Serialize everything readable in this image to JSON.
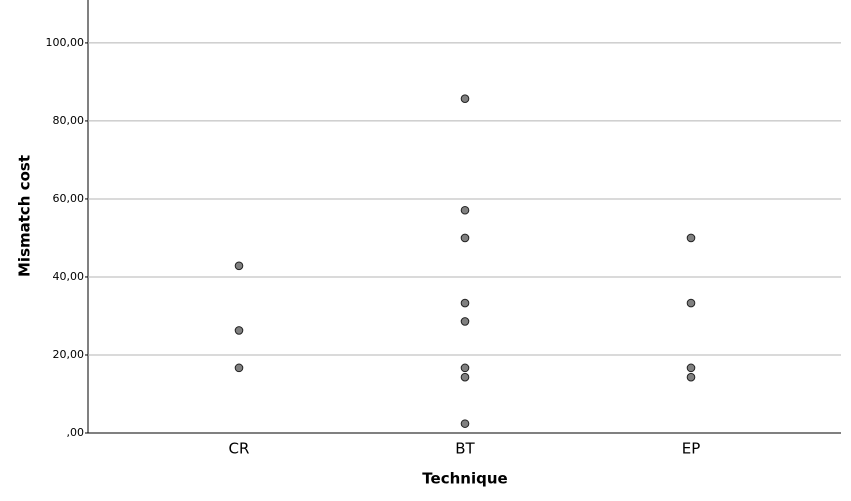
{
  "chart_data": {
    "type": "strip",
    "x_label": "Technique",
    "y_label": "Mismatch cost",
    "categories": [
      "CR",
      "BT",
      "EP"
    ],
    "values": [
      [
        42.86,
        26.3,
        16.7
      ],
      [
        85.7,
        57.1,
        50,
        33.3,
        28.6,
        16.7,
        14.3,
        2.4
      ],
      [
        50,
        33.3,
        16.7,
        14.3
      ]
    ],
    "color": "#808080",
    "ylim": [
      0,
      111
    ],
    "yticks": [
      {
        "value": 0,
        "label": ",00"
      },
      {
        "value": 20,
        "label": "20,00"
      },
      {
        "value": 40,
        "label": "40,00"
      },
      {
        "value": 60,
        "label": "60,00"
      },
      {
        "value": 80,
        "label": "80,00"
      },
      {
        "value": 100,
        "label": "100,00"
      }
    ],
    "grid": true
  }
}
